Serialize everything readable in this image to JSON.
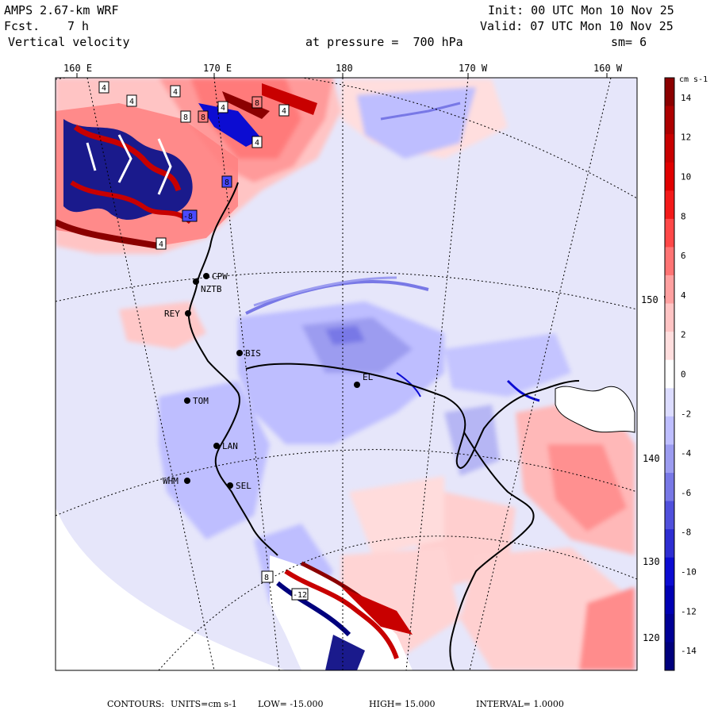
{
  "header": {
    "model": "AMPS 2.67-km WRF",
    "fcst_label": "Fcst.",
    "fcst_value": "7 h",
    "field": "Vertical velocity",
    "init": "Init: 00 UTC Mon 10 Nov 25",
    "valid": "Valid: 07 UTC Mon 10 Nov 25",
    "pressure": "at pressure =  700 hPa",
    "smoothing": "sm= 6"
  },
  "longitude_labels": [
    "160 E",
    "170 E",
    "180",
    "170 W",
    "160 W"
  ],
  "latitude_labels": [
    "150 W",
    "140 W",
    "130 W",
    "120 W"
  ],
  "stations": [
    {
      "id": "CPW"
    },
    {
      "id": "NZTB"
    },
    {
      "id": "REY"
    },
    {
      "id": "BIS"
    },
    {
      "id": "TOM"
    },
    {
      "id": "LAN"
    },
    {
      "id": "WHM"
    },
    {
      "id": "SEL"
    },
    {
      "id": "EL"
    }
  ],
  "contour_labels": [
    "4",
    "4",
    "4",
    "8",
    "8",
    "4",
    "8",
    "4",
    "4",
    "-8",
    "8",
    "4",
    "8",
    "-12"
  ],
  "colorbar": {
    "units": "cm s-1",
    "min": -15,
    "max": 15,
    "interval": 1,
    "tick_labels": [
      "14",
      "12",
      "10",
      "8",
      "6",
      "4",
      "2",
      "0",
      "-2",
      "-4",
      "-6",
      "-8",
      "-10",
      "-12",
      "-14"
    ],
    "colors": [
      "#8b0000",
      "#ad0000",
      "#c80000",
      "#e00000",
      "#f31a1a",
      "#ff4848",
      "#ff7474",
      "#ffa0a0",
      "#ffc4c4",
      "#ffdede",
      "#ffffff",
      "#dcdcff",
      "#bebeff",
      "#9c9cf0",
      "#7878e6",
      "#5050dc",
      "#2e2ed2",
      "#0c0cd2",
      "#0000b4",
      "#000096",
      "#00007d"
    ]
  },
  "footer": {
    "contours": "CONTOURS:",
    "units": "UNITS=cm s-1",
    "low": "LOW= -15.000",
    "high": "HIGH= 15.000",
    "interval": "INTERVAL= 1.0000"
  }
}
